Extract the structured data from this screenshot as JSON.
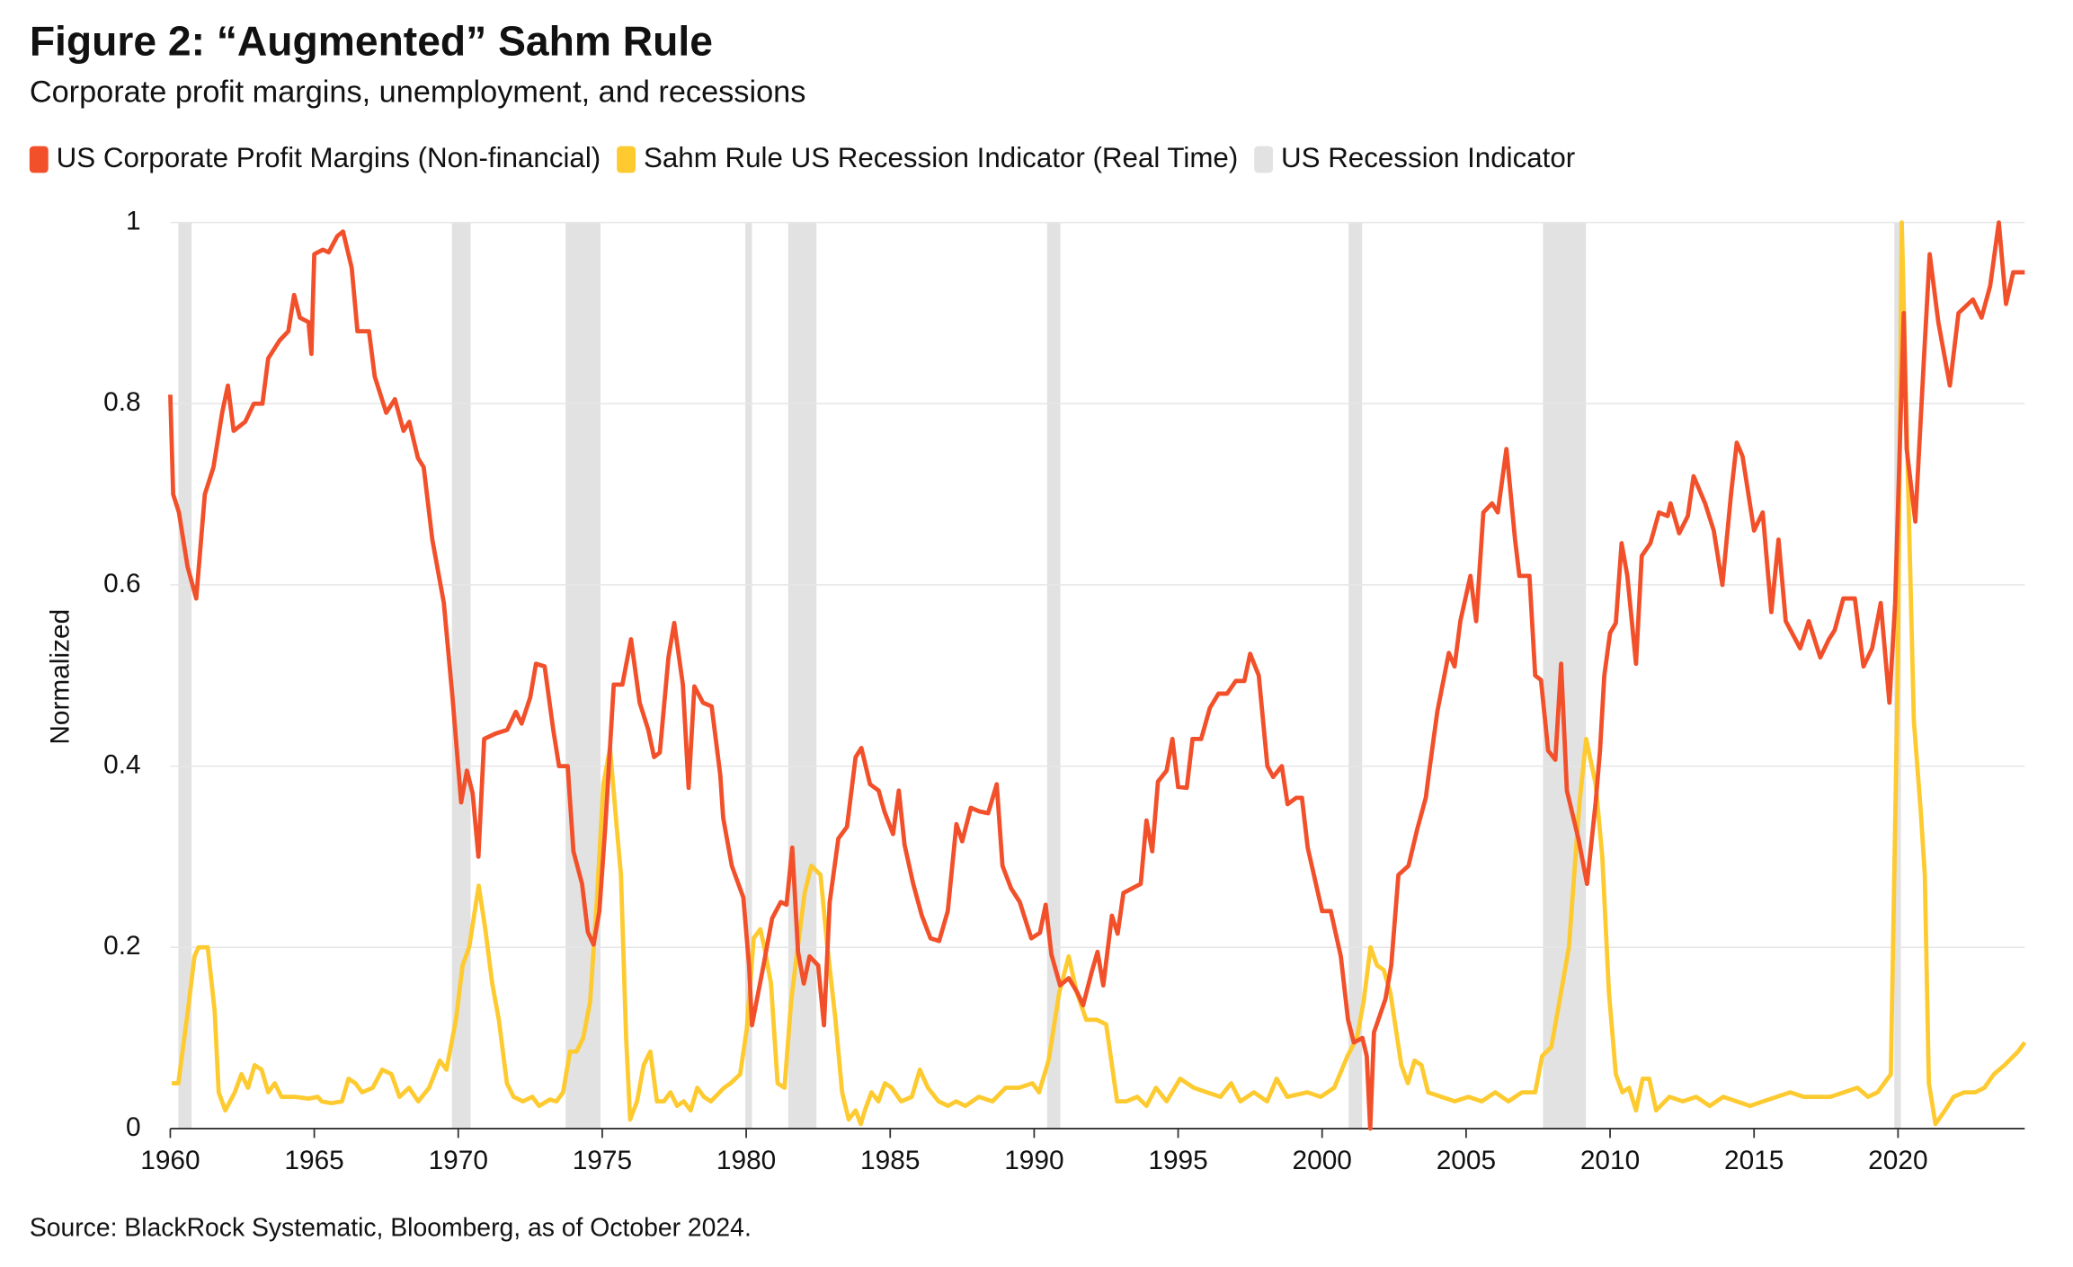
{
  "chart_data": {
    "type": "line",
    "title": "Figure 2: “Augmented” Sahm Rule",
    "subtitle": "Corporate profit margins, unemployment, and recessions",
    "y_label": "Normalized",
    "source": "Source: BlackRock Systematic, Bloomberg, as of October 2024.",
    "xlim": [
      1960,
      2024.4
    ],
    "xticks": [
      1960,
      1965,
      1970,
      1975,
      1980,
      1985,
      1990,
      1995,
      2000,
      2005,
      2010,
      2015,
      2020
    ],
    "ylim": [
      0,
      1
    ],
    "yticks": [
      0,
      0.2,
      0.4,
      0.6,
      0.8,
      1
    ],
    "grid": true,
    "legend": "top-left",
    "series": [
      {
        "name": "US Corporate Profit Margins (Non-financial)",
        "color": "#f2502a",
        "x": [
          1960,
          1960.1,
          1960.3,
          1960.6,
          1960.9,
          1961.2,
          1961.5,
          1961.8,
          1962,
          1962.2,
          1962.6,
          1962.9,
          1963.2,
          1963.4,
          1963.8,
          1964.1,
          1964.3,
          1964.5,
          1964.8,
          1964.9,
          1965,
          1965.3,
          1965.5,
          1965.8,
          1966,
          1966.3,
          1966.5,
          1966.9,
          1967.1,
          1967.5,
          1967.8,
          1968.1,
          1968.3,
          1968.6,
          1968.8,
          1969.1,
          1969.5,
          1969.8,
          1970.1,
          1970.3,
          1970.5,
          1970.7,
          1970.9,
          1971.3,
          1971.7,
          1972,
          1972.2,
          1972.5,
          1972.7,
          1973,
          1973.3,
          1973.5,
          1973.8,
          1974,
          1974.3,
          1974.5,
          1974.7,
          1974.9,
          1975.1,
          1975.4,
          1975.7,
          1976,
          1976.3,
          1976.6,
          1976.8,
          1977,
          1977.3,
          1977.5,
          1977.8,
          1978,
          1978.2,
          1978.5,
          1978.8,
          1979.1,
          1979.2,
          1979.5,
          1979.9,
          1980.1,
          1980.2,
          1980.6,
          1980.9,
          1981.2,
          1981.4,
          1981.6,
          1981.8,
          1982,
          1982.2,
          1982.5,
          1982.7,
          1982.9,
          1983.2,
          1983.5,
          1983.8,
          1984,
          1984.3,
          1984.6,
          1984.8,
          1985.1,
          1985.3,
          1985.5,
          1985.8,
          1986.1,
          1986.4,
          1986.7,
          1987,
          1987.3,
          1987.5,
          1987.8,
          1988.1,
          1988.4,
          1988.7,
          1988.9,
          1989.2,
          1989.5,
          1989.9,
          1990.2,
          1990.4,
          1990.6,
          1990.9,
          1991.2,
          1991.5,
          1991.7,
          1992,
          1992.2,
          1992.4,
          1992.7,
          1992.9,
          1993.1,
          1993.7,
          1993.9,
          1994.1,
          1994.3,
          1994.6,
          1994.8,
          1995,
          1995.3,
          1995.5,
          1995.8,
          1996.1,
          1996.4,
          1996.7,
          1997,
          1997.3,
          1997.5,
          1997.8,
          1998.1,
          1998.3,
          1998.6,
          1998.8,
          1999.1,
          1999.3,
          1999.5,
          2000,
          2000.3,
          2000.65,
          2000.9,
          2001.1,
          2001.4,
          2001.55,
          2001.67,
          2001.8,
          2002.2,
          2002.4,
          2002.65,
          2003,
          2003.3,
          2003.6,
          2003.7,
          2004,
          2004.4,
          2004.6,
          2004.8,
          2005.15,
          2005.35,
          2005.6,
          2005.9,
          2006.1,
          2006.4,
          2006.7,
          2006.85,
          2007.2,
          2007.4,
          2007.6,
          2007.85,
          2008.1,
          2008.3,
          2008.5,
          2008.9,
          2009.2,
          2009.5,
          2009.65,
          2009.8,
          2010,
          2010.2,
          2010.4,
          2010.6,
          2010.9,
          2011.1,
          2011.4,
          2011.7,
          2012,
          2012.1,
          2012.4,
          2012.7,
          2012.9,
          2013.3,
          2013.6,
          2013.9,
          2014.2,
          2014.4,
          2014.6,
          2015,
          2015.3,
          2015.6,
          2015.85,
          2016.1,
          2016.6,
          2016.9,
          2017.3,
          2017.6,
          2017.8,
          2018.1,
          2018.5,
          2018.8,
          2019.1,
          2019.4,
          2019.7,
          2019.9,
          2020.2,
          2020.3,
          2020.6,
          2020.9,
          2021.1,
          2021.4,
          2021.8,
          2022.1,
          2022.6,
          2022.9,
          2023.2,
          2023.5,
          2023.75,
          2024,
          2024.4
        ],
        "values": [
          0.81,
          0.7,
          0.68,
          0.62,
          0.585,
          0.7,
          0.73,
          0.79,
          0.82,
          0.77,
          0.78,
          0.8,
          0.8,
          0.85,
          0.87,
          0.88,
          0.92,
          0.895,
          0.89,
          0.855,
          0.965,
          0.97,
          0.967,
          0.985,
          0.99,
          0.95,
          0.88,
          0.88,
          0.83,
          0.79,
          0.805,
          0.77,
          0.78,
          0.74,
          0.73,
          0.65,
          0.58,
          0.476,
          0.36,
          0.395,
          0.37,
          0.3,
          0.43,
          0.436,
          0.44,
          0.46,
          0.447,
          0.476,
          0.513,
          0.51,
          0.44,
          0.4,
          0.4,
          0.306,
          0.27,
          0.217,
          0.203,
          0.24,
          0.33,
          0.49,
          0.49,
          0.54,
          0.47,
          0.44,
          0.41,
          0.415,
          0.52,
          0.558,
          0.49,
          0.376,
          0.488,
          0.47,
          0.466,
          0.39,
          0.343,
          0.29,
          0.255,
          0.18,
          0.114,
          0.18,
          0.232,
          0.25,
          0.247,
          0.31,
          0.195,
          0.16,
          0.19,
          0.18,
          0.114,
          0.25,
          0.32,
          0.333,
          0.41,
          0.42,
          0.38,
          0.373,
          0.35,
          0.325,
          0.373,
          0.313,
          0.27,
          0.235,
          0.21,
          0.207,
          0.24,
          0.336,
          0.317,
          0.354,
          0.35,
          0.348,
          0.38,
          0.29,
          0.265,
          0.25,
          0.21,
          0.216,
          0.247,
          0.192,
          0.158,
          0.166,
          0.15,
          0.136,
          0.173,
          0.195,
          0.158,
          0.235,
          0.215,
          0.26,
          0.27,
          0.34,
          0.306,
          0.383,
          0.395,
          0.43,
          0.377,
          0.376,
          0.43,
          0.43,
          0.464,
          0.48,
          0.48,
          0.494,
          0.494,
          0.524,
          0.5,
          0.4,
          0.388,
          0.4,
          0.358,
          0.365,
          0.365,
          0.31,
          0.24,
          0.24,
          0.19,
          0.12,
          0.095,
          0.1,
          0.08,
          0,
          0.106,
          0.143,
          0.18,
          0.28,
          0.29,
          0.33,
          0.365,
          0.39,
          0.46,
          0.525,
          0.51,
          0.56,
          0.61,
          0.56,
          0.68,
          0.69,
          0.68,
          0.75,
          0.65,
          0.61,
          0.61,
          0.5,
          0.495,
          0.417,
          0.407,
          0.513,
          0.373,
          0.32,
          0.27,
          0.36,
          0.417,
          0.5,
          0.547,
          0.558,
          0.646,
          0.61,
          0.513,
          0.632,
          0.646,
          0.68,
          0.676,
          0.69,
          0.657,
          0.676,
          0.72,
          0.69,
          0.66,
          0.6,
          0.7,
          0.757,
          0.742,
          0.66,
          0.68,
          0.57,
          0.65,
          0.56,
          0.53,
          0.56,
          0.52,
          0.54,
          0.55,
          0.585,
          0.585,
          0.51,
          0.53,
          0.58,
          0.47,
          0.58,
          0.9,
          0.75,
          0.67,
          0.85,
          0.965,
          0.89,
          0.82,
          0.9,
          0.915,
          0.895,
          0.93,
          1,
          0.91,
          0.945,
          0.945
        ]
      },
      {
        "name": "Sahm Rule US Recession Indicator (Real Time)",
        "color": "#fdca30",
        "x": [
          1960.05,
          1960.28,
          1960.61,
          1960.84,
          1960.98,
          1961.3,
          1961.54,
          1961.68,
          1961.91,
          1962.24,
          1962.47,
          1962.7,
          1962.93,
          1963.17,
          1963.4,
          1963.63,
          1963.86,
          1964.33,
          1964.8,
          1965.12,
          1965.26,
          1965.59,
          1965.96,
          1966.19,
          1966.43,
          1966.66,
          1967.03,
          1967.36,
          1967.68,
          1967.96,
          1968.29,
          1968.61,
          1968.99,
          1969.36,
          1969.59,
          1969.92,
          1970.15,
          1970.38,
          1970.71,
          1970.94,
          1971.18,
          1971.41,
          1971.69,
          1971.92,
          1972.25,
          1972.57,
          1972.81,
          1973.18,
          1973.41,
          1973.64,
          1973.88,
          1974.11,
          1974.34,
          1974.58,
          1974.81,
          1975.04,
          1975.27,
          1975.51,
          1975.65,
          1975.83,
          1975.97,
          1976.21,
          1976.44,
          1976.67,
          1976.9,
          1977.14,
          1977.37,
          1977.6,
          1977.83,
          1978.07,
          1978.3,
          1978.53,
          1978.77,
          1979.23,
          1979.46,
          1979.79,
          1980.02,
          1980.26,
          1980.49,
          1980.63,
          1980.86,
          1981.09,
          1981.33,
          1981.56,
          1981.79,
          1982.03,
          1982.26,
          1982.58,
          1982.82,
          1983.1,
          1983.33,
          1983.56,
          1983.8,
          1983.98,
          1984.12,
          1984.35,
          1984.59,
          1984.82,
          1985.05,
          1985.38,
          1985.75,
          1986.03,
          1986.31,
          1986.68,
          1987.01,
          1987.29,
          1987.61,
          1988.08,
          1988.55,
          1989.01,
          1989.48,
          1989.94,
          1990.17,
          1990.5,
          1990.87,
          1991.2,
          1991.48,
          1991.81,
          1992.18,
          1992.5,
          1992.88,
          1993.2,
          1993.58,
          1993.9,
          1994.23,
          1994.6,
          1995.07,
          1995.54,
          1996,
          1996.47,
          1996.84,
          1997.16,
          1997.63,
          1998.09,
          1998.42,
          1998.79,
          1999.49,
          1999.95,
          2000.42,
          2000.88,
          2001.21,
          2001.44,
          2001.68,
          2001.91,
          2002.14,
          2002.37,
          2002.75,
          2002.98,
          2003.21,
          2003.45,
          2003.68,
          2004.14,
          2004.61,
          2005.08,
          2005.54,
          2006.01,
          2006.47,
          2006.94,
          2007.4,
          2007.64,
          2007.96,
          2008.24,
          2008.57,
          2008.8,
          2008.94,
          2009.17,
          2009.5,
          2009.73,
          2009.96,
          2010.2,
          2010.43,
          2010.66,
          2010.9,
          2011.13,
          2011.36,
          2011.6,
          2012.06,
          2012.53,
          2012.99,
          2013.46,
          2013.93,
          2014.39,
          2014.86,
          2015.32,
          2015.79,
          2016.26,
          2016.72,
          2017.19,
          2017.65,
          2018.12,
          2018.59,
          2018.96,
          2019.29,
          2019.75,
          2019.99,
          2020.13,
          2020.32,
          2020.55,
          2020.79,
          2020.93,
          2021.07,
          2021.3,
          2021.63,
          2021.93,
          2022.3,
          2022.68,
          2023,
          2023.33,
          2023.7,
          2024.17,
          2024.4
        ],
        "values": [
          0.05,
          0.05,
          0.13,
          0.19,
          0.2,
          0.2,
          0.13,
          0.04,
          0.02,
          0.04,
          0.06,
          0.045,
          0.07,
          0.065,
          0.04,
          0.05,
          0.035,
          0.035,
          0.033,
          0.035,
          0.03,
          0.028,
          0.03,
          0.055,
          0.05,
          0.04,
          0.045,
          0.065,
          0.06,
          0.035,
          0.045,
          0.03,
          0.045,
          0.075,
          0.065,
          0.12,
          0.18,
          0.2,
          0.268,
          0.22,
          0.16,
          0.12,
          0.05,
          0.035,
          0.03,
          0.035,
          0.025,
          0.032,
          0.03,
          0.04,
          0.085,
          0.085,
          0.1,
          0.14,
          0.25,
          0.38,
          0.42,
          0.33,
          0.28,
          0.1,
          0.01,
          0.03,
          0.07,
          0.085,
          0.03,
          0.03,
          0.04,
          0.025,
          0.03,
          0.02,
          0.045,
          0.035,
          0.03,
          0.045,
          0.05,
          0.06,
          0.11,
          0.21,
          0.22,
          0.2,
          0.16,
          0.05,
          0.045,
          0.14,
          0.2,
          0.26,
          0.29,
          0.28,
          0.2,
          0.12,
          0.04,
          0.01,
          0.02,
          0.005,
          0.02,
          0.04,
          0.03,
          0.05,
          0.045,
          0.03,
          0.035,
          0.065,
          0.045,
          0.03,
          0.025,
          0.03,
          0.025,
          0.035,
          0.03,
          0.045,
          0.045,
          0.05,
          0.04,
          0.075,
          0.15,
          0.19,
          0.15,
          0.12,
          0.12,
          0.115,
          0.03,
          0.03,
          0.035,
          0.025,
          0.045,
          0.03,
          0.055,
          0.045,
          0.04,
          0.035,
          0.05,
          0.03,
          0.04,
          0.03,
          0.055,
          0.035,
          0.04,
          0.035,
          0.045,
          0.08,
          0.1,
          0.14,
          0.2,
          0.18,
          0.175,
          0.15,
          0.07,
          0.05,
          0.075,
          0.07,
          0.04,
          0.035,
          0.03,
          0.035,
          0.03,
          0.04,
          0.03,
          0.04,
          0.04,
          0.08,
          0.09,
          0.14,
          0.2,
          0.3,
          0.36,
          0.43,
          0.38,
          0.3,
          0.15,
          0.06,
          0.04,
          0.045,
          0.02,
          0.055,
          0.055,
          0.02,
          0.035,
          0.03,
          0.035,
          0.025,
          0.035,
          0.03,
          0.025,
          0.03,
          0.035,
          0.04,
          0.035,
          0.035,
          0.035,
          0.04,
          0.045,
          0.035,
          0.04,
          0.06,
          0.5,
          1,
          0.75,
          0.45,
          0.35,
          0.28,
          0.05,
          0.005,
          0.02,
          0.035,
          0.04,
          0.04,
          0.045,
          0.06,
          0.07,
          0.085,
          0.095
        ]
      }
    ],
    "recessions": {
      "name": "US Recession Indicator",
      "color": "#e2e2e2",
      "spans": [
        [
          1960.28,
          1960.74
        ],
        [
          1969.78,
          1970.43
        ],
        [
          1973.73,
          1974.94
        ],
        [
          1979.97,
          1980.2
        ],
        [
          1981.46,
          1982.44
        ],
        [
          1990.45,
          1990.91
        ],
        [
          2000.92,
          2001.39
        ],
        [
          2007.67,
          2009.16
        ],
        [
          2019.87,
          2020.1
        ]
      ]
    }
  }
}
